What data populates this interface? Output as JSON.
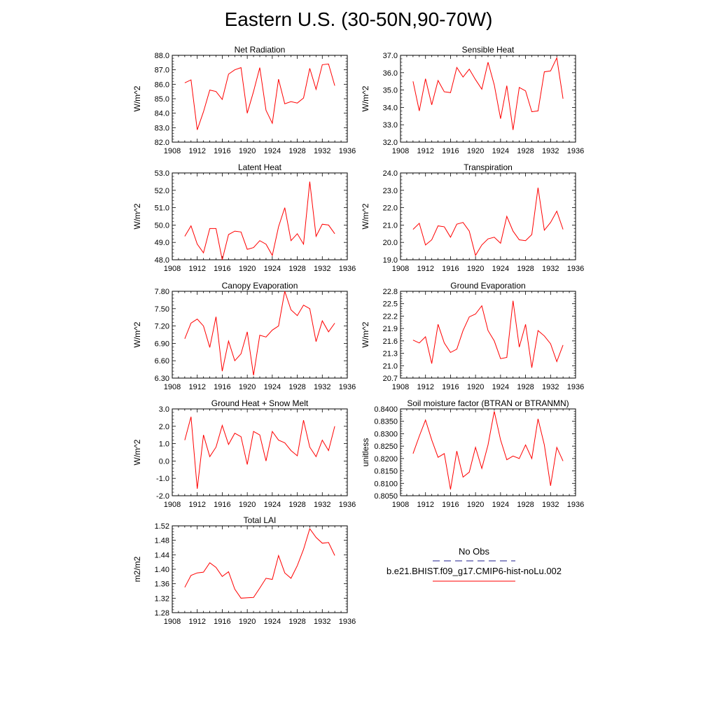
{
  "title": "Eastern U.S. (30-50N,90-70W)",
  "legend": {
    "entries": [
      {
        "label": "No Obs",
        "color": "#1f1f8f",
        "style": "dashed"
      },
      {
        "label": "b.e21.BHIST.f09_g17.CMIP6-hist-noLu.002",
        "color": "#ff0000",
        "style": "solid"
      }
    ]
  },
  "chart_data": [
    {
      "type": "line",
      "title": "Net Radiation",
      "ylabel": "W/m^2",
      "xlim": [
        1908,
        1936
      ],
      "ylim": [
        82,
        88
      ],
      "xticks": [
        "1908",
        "1912",
        "1916",
        "1920",
        "1924",
        "1928",
        "1932",
        "1936"
      ],
      "yticks": [
        "82.0",
        "83.0",
        "84.0",
        "85.0",
        "86.0",
        "87.0",
        "88.0"
      ],
      "series": [
        {
          "color": "#ff0000",
          "x": [
            1910,
            1911,
            1912,
            1913,
            1914,
            1915,
            1916,
            1917,
            1918,
            1919,
            1920,
            1921,
            1922,
            1923,
            1924,
            1925,
            1926,
            1927,
            1928,
            1929,
            1930,
            1931,
            1932,
            1933,
            1934
          ],
          "y": [
            86.1,
            86.3,
            82.85,
            84.1,
            85.6,
            85.5,
            84.95,
            86.7,
            87.0,
            87.15,
            84.0,
            85.5,
            87.15,
            84.2,
            83.3,
            86.35,
            84.65,
            84.8,
            84.7,
            85.05,
            87.1,
            85.65,
            87.35,
            87.4,
            85.9
          ]
        }
      ]
    },
    {
      "type": "line",
      "title": "Sensible Heat",
      "ylabel": "W/m^2",
      "xlim": [
        1908,
        1936
      ],
      "ylim": [
        32,
        37
      ],
      "xticks": [
        "1908",
        "1912",
        "1916",
        "1920",
        "1924",
        "1928",
        "1932",
        "1936"
      ],
      "yticks": [
        "32.0",
        "33.0",
        "34.0",
        "35.0",
        "36.0",
        "37.0"
      ],
      "series": [
        {
          "color": "#ff0000",
          "x": [
            1910,
            1911,
            1912,
            1913,
            1914,
            1915,
            1916,
            1917,
            1918,
            1919,
            1920,
            1921,
            1922,
            1923,
            1924,
            1925,
            1926,
            1927,
            1928,
            1929,
            1930,
            1931,
            1932,
            1933,
            1934
          ],
          "y": [
            35.5,
            33.8,
            35.65,
            34.15,
            35.55,
            34.9,
            34.85,
            36.3,
            35.75,
            36.2,
            35.6,
            35.05,
            36.6,
            35.3,
            33.35,
            35.25,
            32.7,
            35.15,
            34.95,
            33.75,
            33.8,
            36.05,
            36.1,
            36.85,
            34.5
          ]
        }
      ]
    },
    {
      "type": "line",
      "title": "Latent Heat",
      "ylabel": "W/m^2",
      "xlim": [
        1908,
        1936
      ],
      "ylim": [
        48,
        53
      ],
      "xticks": [
        "1908",
        "1912",
        "1916",
        "1920",
        "1924",
        "1928",
        "1932",
        "1936"
      ],
      "yticks": [
        "48.0",
        "49.0",
        "50.0",
        "51.0",
        "52.0",
        "53.0"
      ],
      "series": [
        {
          "color": "#ff0000",
          "x": [
            1910,
            1911,
            1912,
            1913,
            1914,
            1915,
            1916,
            1917,
            1918,
            1919,
            1920,
            1921,
            1922,
            1923,
            1924,
            1925,
            1926,
            1927,
            1928,
            1929,
            1930,
            1931,
            1932,
            1933,
            1934
          ],
          "y": [
            49.35,
            49.95,
            48.9,
            48.4,
            49.8,
            49.8,
            48.0,
            49.45,
            49.65,
            49.6,
            48.6,
            48.7,
            49.1,
            48.9,
            48.25,
            49.9,
            51.0,
            49.1,
            49.5,
            48.9,
            52.5,
            49.35,
            50.05,
            50.0,
            49.5
          ]
        }
      ]
    },
    {
      "type": "line",
      "title": "Transpiration",
      "ylabel": "W/m^2",
      "xlim": [
        1908,
        1936
      ],
      "ylim": [
        19,
        24
      ],
      "xticks": [
        "1908",
        "1912",
        "1916",
        "1920",
        "1924",
        "1928",
        "1932",
        "1936"
      ],
      "yticks": [
        "19.0",
        "20.0",
        "21.0",
        "22.0",
        "23.0",
        "24.0"
      ],
      "series": [
        {
          "color": "#ff0000",
          "x": [
            1910,
            1911,
            1912,
            1913,
            1914,
            1915,
            1916,
            1917,
            1918,
            1919,
            1920,
            1921,
            1922,
            1923,
            1924,
            1925,
            1926,
            1927,
            1928,
            1929,
            1930,
            1931,
            1932,
            1933,
            1934
          ],
          "y": [
            20.75,
            21.1,
            19.85,
            20.15,
            20.95,
            20.9,
            20.3,
            21.05,
            21.15,
            20.65,
            19.25,
            19.85,
            20.2,
            20.3,
            19.95,
            21.5,
            20.65,
            20.15,
            20.1,
            20.45,
            23.15,
            20.7,
            21.15,
            21.8,
            20.75
          ]
        }
      ]
    },
    {
      "type": "line",
      "title": "Canopy Evaporation",
      "ylabel": "W/m^2",
      "xlim": [
        1908,
        1936
      ],
      "ylim": [
        6.3,
        7.8
      ],
      "xticks": [
        "1908",
        "1912",
        "1916",
        "1920",
        "1924",
        "1928",
        "1932",
        "1936"
      ],
      "yticks": [
        "6.30",
        "6.60",
        "6.90",
        "7.20",
        "7.50",
        "7.80"
      ],
      "series": [
        {
          "color": "#ff0000",
          "x": [
            1910,
            1911,
            1912,
            1913,
            1914,
            1915,
            1916,
            1917,
            1918,
            1919,
            1920,
            1921,
            1922,
            1923,
            1924,
            1925,
            1926,
            1927,
            1928,
            1929,
            1930,
            1931,
            1932,
            1933,
            1934
          ],
          "y": [
            6.98,
            7.25,
            7.32,
            7.2,
            6.83,
            7.36,
            6.42,
            6.94,
            6.6,
            6.72,
            7.1,
            6.35,
            7.04,
            7.01,
            7.13,
            7.2,
            7.8,
            7.48,
            7.38,
            7.56,
            7.5,
            6.93,
            7.29,
            7.1,
            7.25
          ]
        }
      ]
    },
    {
      "type": "line",
      "title": "Ground Evaporation",
      "ylabel": "W/m^2",
      "xlim": [
        1908,
        1936
      ],
      "ylim": [
        20.7,
        22.8
      ],
      "xticks": [
        "1908",
        "1912",
        "1916",
        "1920",
        "1924",
        "1928",
        "1932",
        "1936"
      ],
      "yticks": [
        "20.7",
        "21.0",
        "21.3",
        "21.6",
        "21.9",
        "22.2",
        "22.5",
        "22.8"
      ],
      "series": [
        {
          "color": "#ff0000",
          "x": [
            1910,
            1911,
            1912,
            1913,
            1914,
            1915,
            1916,
            1917,
            1918,
            1919,
            1920,
            1921,
            1922,
            1923,
            1924,
            1925,
            1926,
            1927,
            1928,
            1929,
            1930,
            1931,
            1932,
            1933,
            1934
          ],
          "y": [
            21.62,
            21.55,
            21.7,
            21.05,
            22.0,
            21.55,
            21.32,
            21.4,
            21.85,
            22.18,
            22.25,
            22.45,
            21.85,
            21.6,
            21.17,
            21.2,
            22.57,
            21.45,
            22.0,
            20.95,
            21.85,
            21.72,
            21.53,
            21.1,
            21.5
          ]
        }
      ]
    },
    {
      "type": "line",
      "title": "Ground Heat + Snow Melt",
      "ylabel": "W/m^2",
      "xlim": [
        1908,
        1936
      ],
      "ylim": [
        -2,
        3
      ],
      "xticks": [
        "1908",
        "1912",
        "1916",
        "1920",
        "1924",
        "1928",
        "1932",
        "1936"
      ],
      "yticks": [
        "-2.0",
        "-1.0",
        "0.0",
        "1.0",
        "2.0",
        "3.0"
      ],
      "series": [
        {
          "color": "#ff0000",
          "x": [
            1910,
            1911,
            1912,
            1913,
            1914,
            1915,
            1916,
            1917,
            1918,
            1919,
            1920,
            1921,
            1922,
            1923,
            1924,
            1925,
            1926,
            1927,
            1928,
            1929,
            1930,
            1931,
            1932,
            1933,
            1934
          ],
          "y": [
            1.2,
            2.55,
            -1.6,
            1.5,
            0.25,
            0.8,
            2.05,
            0.95,
            1.6,
            1.4,
            -0.2,
            1.7,
            1.5,
            0.0,
            1.7,
            1.2,
            1.05,
            0.6,
            0.3,
            2.35,
            0.8,
            0.25,
            1.2,
            0.6,
            2.0
          ]
        }
      ]
    },
    {
      "type": "line",
      "title": "Soil moisture factor (BTRAN or BTRANMN)",
      "ylabel": "unitless",
      "xlim": [
        1908,
        1936
      ],
      "ylim": [
        0.805,
        0.84
      ],
      "xticks": [
        "1908",
        "1912",
        "1916",
        "1920",
        "1924",
        "1928",
        "1932",
        "1936"
      ],
      "yticks": [
        "0.8050",
        "0.8100",
        "0.8150",
        "0.8200",
        "0.8250",
        "0.8300",
        "0.8350",
        "0.8400"
      ],
      "series": [
        {
          "color": "#ff0000",
          "x": [
            1910,
            1911,
            1912,
            1913,
            1914,
            1915,
            1916,
            1917,
            1918,
            1919,
            1920,
            1921,
            1922,
            1923,
            1924,
            1925,
            1926,
            1927,
            1928,
            1929,
            1930,
            1931,
            1932,
            1933,
            1934
          ],
          "y": [
            0.822,
            0.829,
            0.8355,
            0.8275,
            0.8205,
            0.822,
            0.8075,
            0.823,
            0.8125,
            0.8145,
            0.8245,
            0.816,
            0.8255,
            0.839,
            0.8275,
            0.8195,
            0.821,
            0.82,
            0.8255,
            0.82,
            0.836,
            0.8255,
            0.809,
            0.8245,
            0.819
          ]
        }
      ]
    },
    {
      "type": "line",
      "title": "Total LAI",
      "ylabel": "m2/m2",
      "xlim": [
        1908,
        1936
      ],
      "ylim": [
        1.28,
        1.52
      ],
      "xticks": [
        "1908",
        "1912",
        "1916",
        "1920",
        "1924",
        "1928",
        "1932",
        "1936"
      ],
      "yticks": [
        "1.28",
        "1.32",
        "1.36",
        "1.40",
        "1.44",
        "1.48",
        "1.52"
      ],
      "series": [
        {
          "color": "#ff0000",
          "x": [
            1910,
            1911,
            1912,
            1913,
            1914,
            1915,
            1916,
            1917,
            1918,
            1919,
            1920,
            1921,
            1922,
            1923,
            1924,
            1925,
            1926,
            1927,
            1928,
            1929,
            1930,
            1931,
            1932,
            1933,
            1934
          ],
          "y": [
            1.35,
            1.383,
            1.39,
            1.392,
            1.418,
            1.405,
            1.38,
            1.393,
            1.345,
            1.32,
            1.321,
            1.322,
            1.348,
            1.375,
            1.372,
            1.438,
            1.39,
            1.375,
            1.41,
            1.455,
            1.512,
            1.488,
            1.472,
            1.474,
            1.438
          ]
        }
      ]
    }
  ]
}
